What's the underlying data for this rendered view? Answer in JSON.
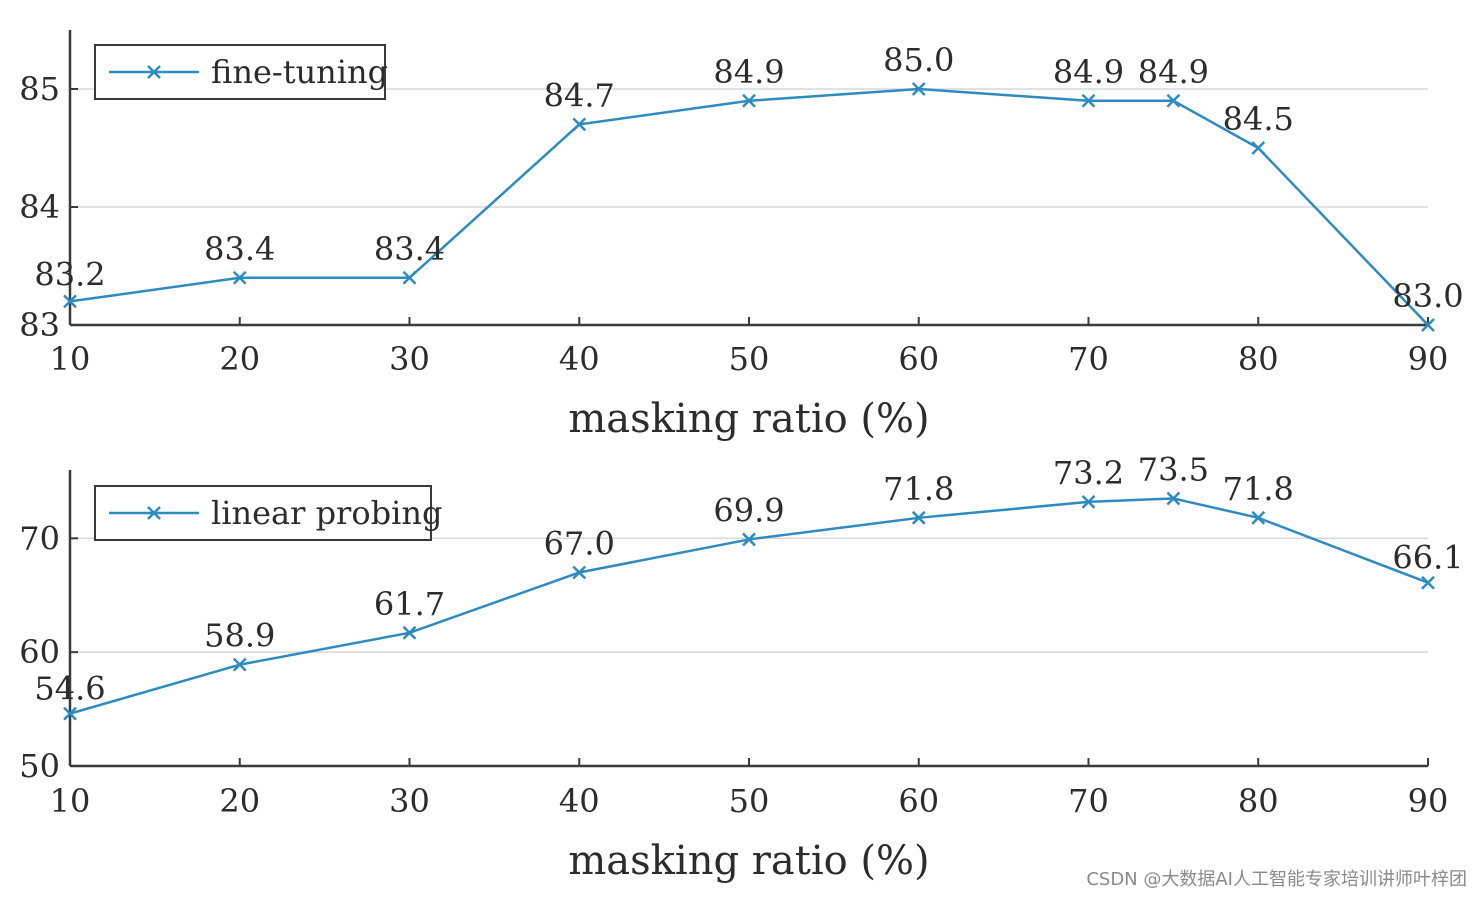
{
  "accent_color": "#2e8bc0",
  "watermark": "CSDN @大数据AI人工智能专家培训讲师叶梓团",
  "chart_data": [
    {
      "type": "line",
      "title": "",
      "xlabel": "masking ratio (%)",
      "ylabel": "",
      "x": [
        10,
        20,
        30,
        40,
        50,
        60,
        70,
        75,
        80,
        90
      ],
      "x_ticks": [
        10,
        20,
        30,
        40,
        50,
        60,
        70,
        80,
        90
      ],
      "y_ticks": [
        83,
        84,
        85
      ],
      "xlim": [
        10,
        90
      ],
      "ylim": [
        83,
        85.5
      ],
      "grid": true,
      "legend_position": "top-left",
      "series": [
        {
          "name": "fine-tuning",
          "values": [
            83.2,
            83.4,
            83.4,
            84.7,
            84.9,
            85.0,
            84.9,
            84.9,
            84.5,
            83.0
          ],
          "labels": [
            "83.2",
            "83.4",
            "83.4",
            "84.7",
            "84.9",
            "85.0",
            "84.9",
            "84.9",
            "84.5",
            "83.0"
          ]
        }
      ]
    },
    {
      "type": "line",
      "title": "",
      "xlabel": "masking ratio (%)",
      "ylabel": "",
      "x": [
        10,
        20,
        30,
        40,
        50,
        60,
        70,
        75,
        80,
        90
      ],
      "x_ticks": [
        10,
        20,
        30,
        40,
        50,
        60,
        70,
        80,
        90
      ],
      "y_ticks": [
        50,
        60,
        70
      ],
      "xlim": [
        10,
        90
      ],
      "ylim": [
        50,
        76
      ],
      "grid": true,
      "legend_position": "top-left",
      "series": [
        {
          "name": "linear probing",
          "values": [
            54.6,
            58.9,
            61.7,
            67.0,
            69.9,
            71.8,
            73.2,
            73.5,
            71.8,
            66.1
          ],
          "labels": [
            "54.6",
            "58.9",
            "61.7",
            "67.0",
            "69.9",
            "71.8",
            "73.2",
            "73.5",
            "71.8",
            "66.1"
          ]
        }
      ]
    }
  ]
}
